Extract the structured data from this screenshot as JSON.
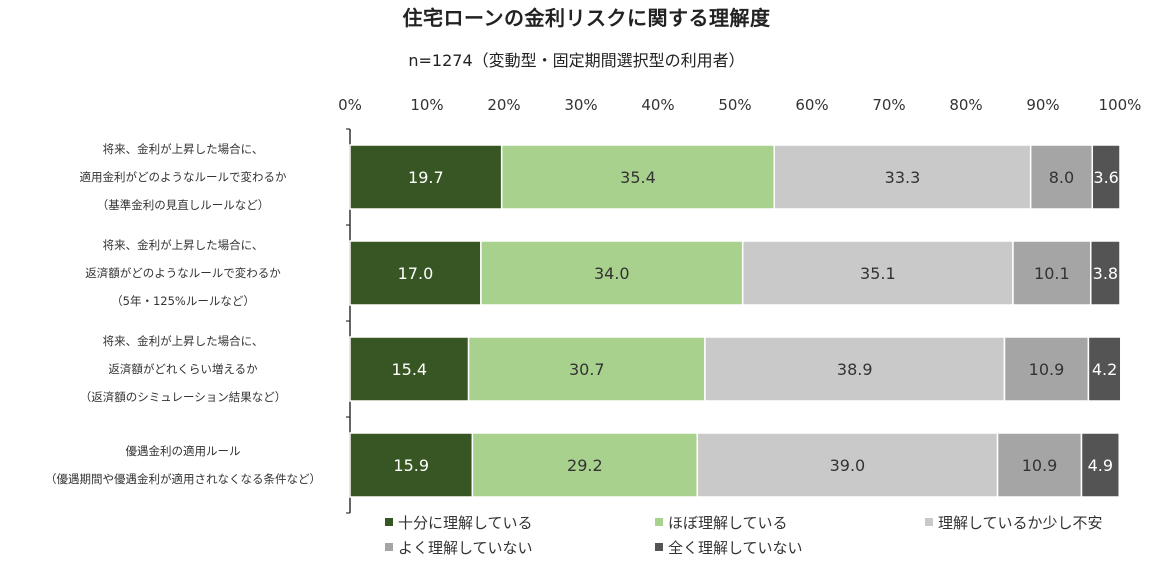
{
  "title": "住宅ローンの金利リスクに関する理解度",
  "subtitle": "n=1274（変動型・固定期間選択型の利用者）",
  "chart_data": {
    "type": "bar",
    "orientation": "horizontal",
    "stacked": "percent",
    "xlim": [
      0,
      100
    ],
    "x_ticks": [
      "0%",
      "10%",
      "20%",
      "30%",
      "40%",
      "50%",
      "60%",
      "70%",
      "80%",
      "90%",
      "100%"
    ],
    "categories": [
      [
        "将来、金利が上昇した場合に、",
        "適用金利がどのようなルールで変わるか",
        "（基準金利の見直しルールなど）"
      ],
      [
        "将来、金利が上昇した場合に、",
        "返済額がどのようなルールで変わるか",
        "（5年・125%ルールなど）"
      ],
      [
        "将来、金利が上昇した場合に、",
        "返済額がどれくらい増えるか",
        "（返済額のシミュレーション結果など）"
      ],
      [
        "優遇金利の適用ルール",
        "（優遇期間や優遇金利が適用されなくなる条件など）"
      ]
    ],
    "series": [
      {
        "name": "十分に理解している",
        "color": "#375623",
        "label_color": "#ffffff",
        "values": [
          19.7,
          17.0,
          15.4,
          15.9
        ]
      },
      {
        "name": "ほぼ理解している",
        "color": "#a9d18e",
        "label_color": "#333333",
        "values": [
          35.4,
          34.0,
          30.7,
          29.2
        ]
      },
      {
        "name": "理解しているか少し不安",
        "color": "#c9c9c9",
        "label_color": "#333333",
        "values": [
          33.3,
          35.1,
          38.9,
          39.0
        ]
      },
      {
        "name": "よく理解していない",
        "color": "#a5a5a5",
        "label_color": "#333333",
        "values": [
          8.0,
          10.1,
          10.9,
          10.9
        ]
      },
      {
        "name": "全く理解していない",
        "color": "#545454",
        "label_color": "#ffffff",
        "values": [
          3.6,
          3.8,
          4.2,
          4.9
        ]
      }
    ],
    "data_labels": [
      [
        "19.7",
        "35.4",
        "33.3",
        "8.0",
        "3.6"
      ],
      [
        "17.0",
        "34.0",
        "35.1",
        "10.1",
        "3.8"
      ],
      [
        "15.4",
        "30.7",
        "38.9",
        "10.9",
        "4.2"
      ],
      [
        "15.9",
        "29.2",
        "39.0",
        "10.9",
        "4.9"
      ]
    ],
    "legend_position": "bottom",
    "grid": false
  }
}
